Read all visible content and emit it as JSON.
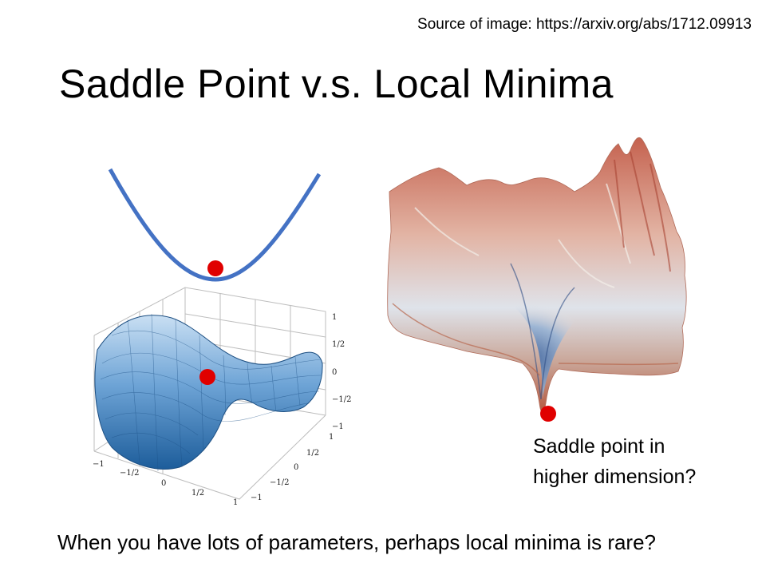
{
  "source": "Source of image: https://arxiv.org/abs/1712.09913",
  "title": "Saddle Point v.s. Local Minima",
  "caption_line1": "Saddle point in",
  "caption_line2": "higher dimension?",
  "footer": "When you have lots of parameters, perhaps local minima is rare?",
  "saddle_plot": {
    "x_ticks": [
      "−1",
      "−1/2",
      "0",
      "1/2",
      "1"
    ],
    "y_ticks": [
      "1",
      "1/2",
      "0",
      "−1/2",
      "−1"
    ],
    "z_ticks": [
      "1",
      "1/2",
      "0",
      "−1/2",
      "−1"
    ]
  },
  "colors": {
    "parabola": "#4472c4",
    "marker": "#e00000",
    "surface_light": "#cfe3f5",
    "surface_dark": "#1d5d9b",
    "landscape_warm": "#c8604f",
    "landscape_cool": "#3a5f9a"
  }
}
